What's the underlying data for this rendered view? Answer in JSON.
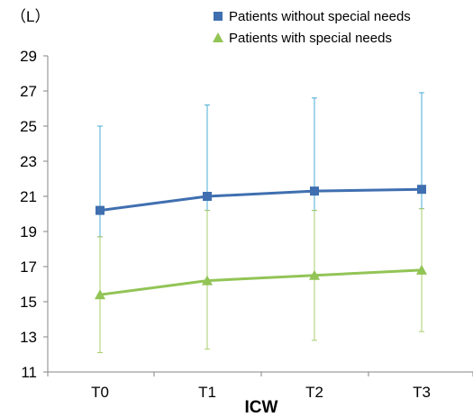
{
  "chart_data": {
    "type": "line",
    "unit_label": "（L）",
    "xlabel": "ICW",
    "ylabel": "",
    "categories": [
      "T0",
      "T1",
      "T2",
      "T3"
    ],
    "ylim": [
      11,
      29
    ],
    "yticks": [
      11,
      13,
      15,
      17,
      19,
      21,
      23,
      25,
      27,
      29
    ],
    "grid": false,
    "legend_position": "top-right",
    "series": [
      {
        "name": "Patients without special needs",
        "color": "#3F6FB0",
        "marker": "square",
        "values": [
          20.2,
          21.0,
          21.3,
          21.4
        ],
        "error_upper": [
          25.0,
          26.2,
          26.6,
          26.9
        ],
        "error_lower": [
          18.7,
          20.2,
          20.2,
          20.3
        ],
        "error_color": "#4AACD4"
      },
      {
        "name": "Patients with special needs",
        "color": "#92C456",
        "marker": "triangle",
        "values": [
          15.4,
          16.2,
          16.5,
          16.8
        ],
        "error_upper": [
          18.7,
          20.2,
          20.2,
          20.3
        ],
        "error_lower": [
          12.1,
          12.3,
          12.8,
          13.3
        ],
        "error_color": "#A9CD6E"
      }
    ]
  }
}
